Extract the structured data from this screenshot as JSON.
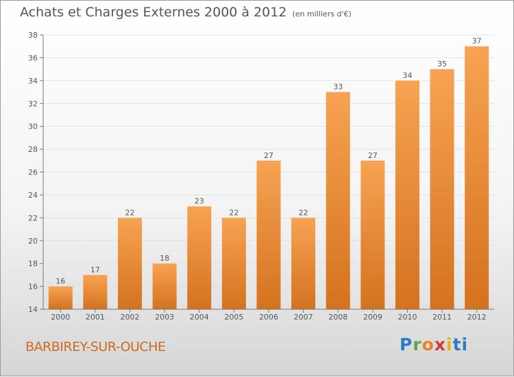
{
  "header": {
    "title": "Achats et Charges Externes 2000 à 2012",
    "subtitle": "(en milliers d'€)"
  },
  "footer": {
    "place": "BARBIREY-SUR-OUCHE",
    "brand_letters": [
      "P",
      "r",
      "o",
      "x",
      "i",
      "t",
      "i"
    ]
  },
  "colors": {
    "bar_top": "#f7a352",
    "bar_bottom": "#d4721f",
    "grid": "#e2e2e2",
    "axis": "#777777",
    "text": "#555555"
  },
  "chart_data": {
    "type": "bar",
    "title": "Achats et Charges Externes 2000 à 2012",
    "subtitle": "(en milliers d'€)",
    "categories": [
      "2000",
      "2001",
      "2002",
      "2003",
      "2004",
      "2005",
      "2006",
      "2007",
      "2008",
      "2009",
      "2010",
      "2011",
      "2012"
    ],
    "values": [
      16,
      17,
      22,
      18,
      23,
      22,
      27,
      22,
      33,
      27,
      34,
      35,
      37
    ],
    "ylim": [
      14,
      38
    ],
    "yticks": [
      14,
      16,
      18,
      20,
      22,
      24,
      26,
      28,
      30,
      32,
      34,
      36,
      38
    ],
    "grid": true,
    "data_labels": true
  }
}
